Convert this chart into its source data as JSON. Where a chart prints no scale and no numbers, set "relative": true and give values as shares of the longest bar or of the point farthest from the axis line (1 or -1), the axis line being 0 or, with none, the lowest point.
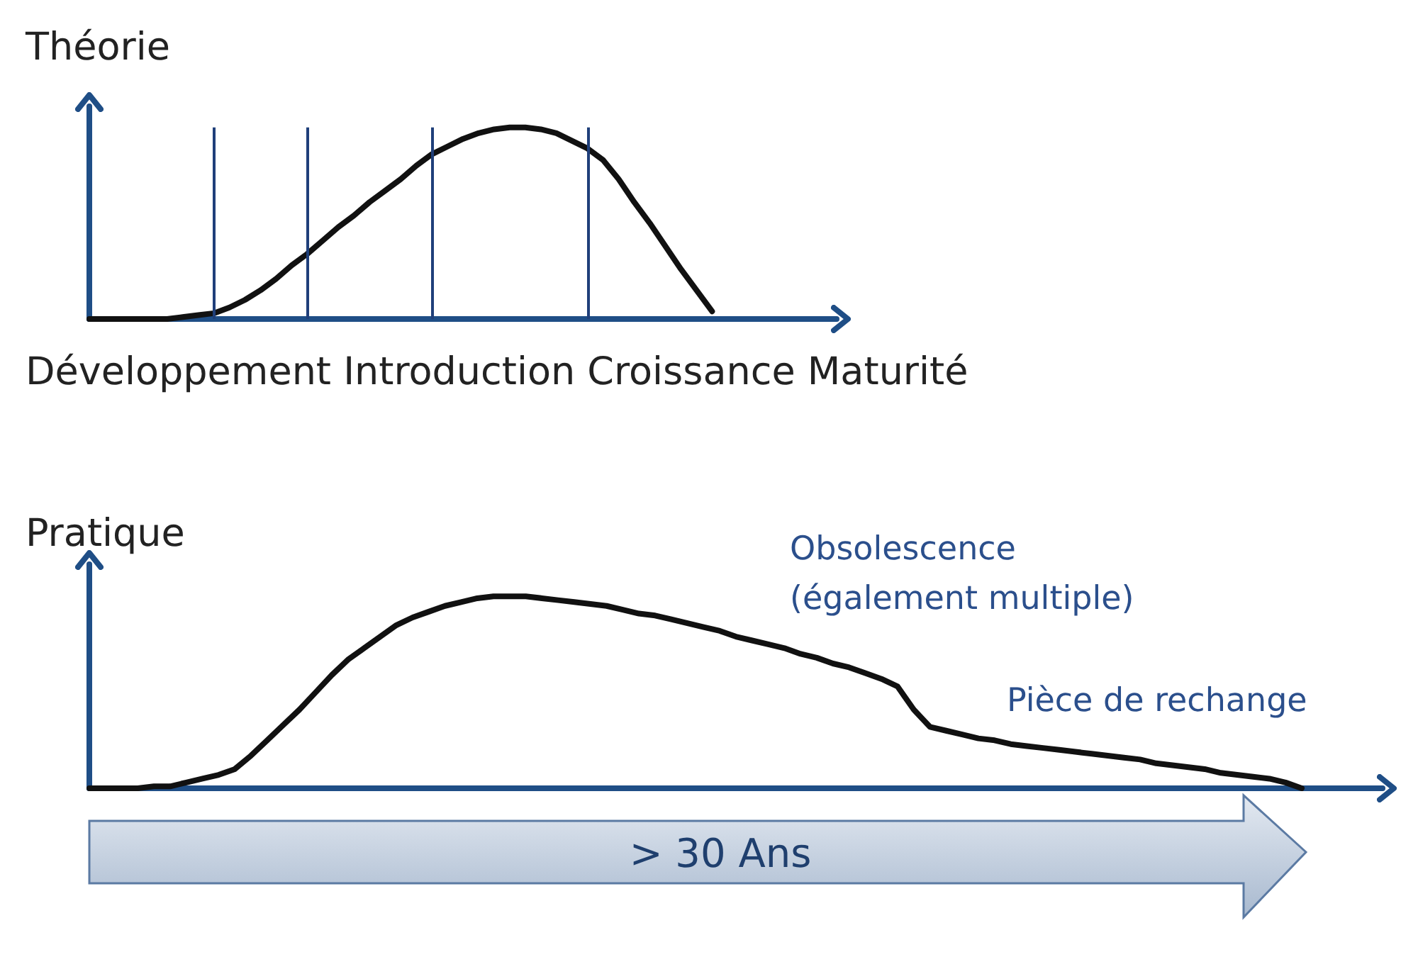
{
  "chart_data": [
    {
      "type": "line",
      "title": "Théorie",
      "xlabel": "Développement Introduction Croissance Maturité",
      "relative": true,
      "marker": "none",
      "line_style": "solid",
      "grid": "x",
      "categories": [
        null,
        null,
        null,
        null,
        null,
        null,
        null,
        null,
        null,
        null,
        null,
        null,
        null,
        null,
        null,
        null,
        null,
        null,
        null,
        null,
        null,
        null,
        null,
        null,
        null,
        null,
        null,
        null,
        null,
        null,
        null,
        null,
        null,
        null,
        null,
        null,
        null,
        null,
        null,
        null,
        null,
        null,
        null,
        null,
        null,
        null,
        null,
        null,
        null
      ],
      "series": [
        {
          "color": "#111111",
          "values": [
            0,
            0,
            0,
            0,
            0,
            0,
            0.01,
            0.02,
            0.03,
            0.06,
            0.1,
            0.15,
            0.21,
            0.28,
            0.34,
            0.41,
            0.48,
            0.54,
            0.61,
            0.67,
            0.73,
            0.8,
            0.86,
            0.9,
            0.94,
            0.97,
            0.99,
            1,
            1,
            0.99,
            0.97,
            0.93,
            0.89,
            0.83,
            0.73,
            0.61,
            0.5,
            0.38,
            0.26,
            0.15,
            0.04,
            null,
            null,
            null,
            null,
            null,
            null,
            null,
            null
          ]
        }
      ]
    },
    {
      "type": "line",
      "title": "Pratique",
      "relative": true,
      "marker": "none",
      "line_style": "solid",
      "categories": [
        null,
        null,
        null,
        null,
        null,
        null,
        null,
        null,
        null,
        null,
        null,
        null,
        null,
        null,
        null,
        null,
        null,
        null,
        null,
        null,
        null,
        null,
        null,
        null,
        null,
        null,
        null,
        null,
        null,
        null,
        null,
        null,
        null,
        null,
        null,
        null,
        null,
        null,
        null,
        null,
        null,
        null,
        null,
        null,
        null,
        null,
        null,
        null,
        null,
        null,
        null,
        null,
        null,
        null,
        null,
        null,
        null,
        null,
        null,
        null,
        null,
        null,
        null,
        null,
        null,
        null,
        null,
        null,
        null,
        null,
        null,
        null,
        null,
        null,
        null,
        null,
        null,
        null,
        null,
        null,
        null
      ],
      "series": [
        {
          "color": "#111111",
          "values": [
            0,
            0,
            0,
            0,
            0.01,
            0.01,
            0.03,
            0.05,
            0.07,
            0.1,
            0.17,
            0.25,
            0.33,
            0.41,
            0.5,
            0.59,
            0.67,
            0.73,
            0.79,
            0.85,
            0.89,
            0.92,
            0.95,
            0.97,
            0.99,
            1,
            1,
            1,
            0.99,
            0.98,
            0.97,
            0.96,
            0.95,
            0.93,
            0.91,
            0.9,
            0.88,
            0.86,
            0.84,
            0.82,
            0.79,
            0.77,
            0.75,
            0.73,
            0.7,
            0.68,
            0.65,
            0.63,
            0.6,
            0.57,
            0.53,
            0.41,
            0.32,
            0.3,
            0.28,
            0.26,
            0.25,
            0.23,
            0.22,
            0.21,
            0.2,
            0.19,
            0.18,
            0.17,
            0.16,
            0.15,
            0.13,
            0.12,
            0.11,
            0.1,
            0.08,
            0.07,
            0.06,
            0.05,
            0.03,
            0,
            null,
            null,
            null,
            null,
            null
          ]
        }
      ],
      "annotations": [
        "Obsolescence\n(également multiple)",
        "Pièce de rechange",
        "> 30 Ans"
      ]
    }
  ]
}
